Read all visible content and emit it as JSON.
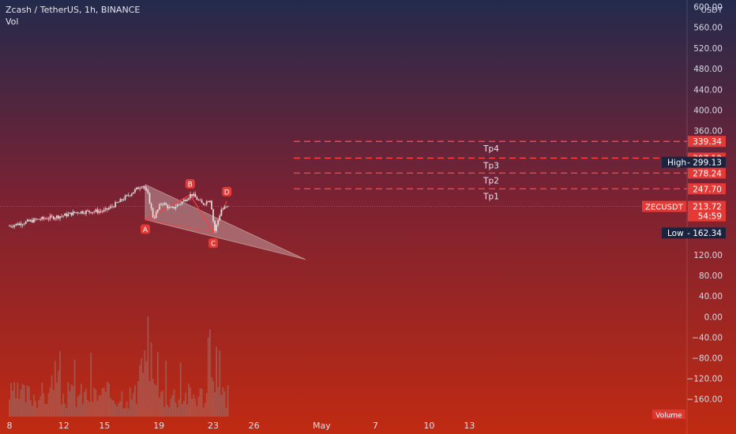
{
  "header": {
    "symbol_line": "Zcash / TetherUS, 1h, BINANCE",
    "sub_line": "Vol"
  },
  "colors": {
    "bg_top": "#232a4c",
    "bg_mid": "#7a2233",
    "bg_bottom": "#c02a12",
    "candle": "#e8e0e0",
    "level_line": "#ff4040",
    "level_badge": "#e53935",
    "dark_badge": "#1a2440",
    "pattern_fill": "#cfb8b8",
    "pattern_line": "#ff3b3b",
    "point_badge": "#e53935"
  },
  "chart_data": {
    "type": "candlestick",
    "symbol": "ZECUSDT",
    "timeframe": "1h",
    "exchange": "BINANCE",
    "y_unit": "USDT",
    "ylim": [
      -180,
      600
    ],
    "y_ticks": [
      "600.00",
      "560.00",
      "520.00",
      "480.00",
      "440.00",
      "400.00",
      "360.00",
      "120.00",
      "80.00",
      "40.00",
      "0.00",
      "−40.00",
      "−80.00",
      "−120.00",
      "−160.00"
    ],
    "x_ticks": [
      "8",
      "12",
      "15",
      "19",
      "23",
      "26",
      "May",
      "7",
      "10",
      "13"
    ],
    "price_path": [
      {
        "day": 8,
        "price": 176
      },
      {
        "day": 10,
        "price": 188
      },
      {
        "day": 12,
        "price": 196
      },
      {
        "day": 13,
        "price": 203
      },
      {
        "day": 15,
        "price": 205
      },
      {
        "day": 16,
        "price": 221
      },
      {
        "day": 17.2,
        "price": 244
      },
      {
        "day": 17.8,
        "price": 256
      },
      {
        "day": 18.2,
        "price": 236
      },
      {
        "day": 18.6,
        "price": 190
      },
      {
        "day": 19.2,
        "price": 222
      },
      {
        "day": 19.9,
        "price": 208
      },
      {
        "day": 20.7,
        "price": 222
      },
      {
        "day": 21.4,
        "price": 238
      },
      {
        "day": 22.2,
        "price": 218
      },
      {
        "day": 22.8,
        "price": 228
      },
      {
        "day": 23.1,
        "price": 165
      },
      {
        "day": 23.6,
        "price": 208
      },
      {
        "day": 24.2,
        "price": 214
      }
    ],
    "levels": [
      {
        "label": "339.34",
        "price": 339.34,
        "target": "Tp4",
        "style": "red"
      },
      {
        "label": "307.10",
        "price": 307.1,
        "target": "Tp3",
        "style": "red"
      },
      {
        "label": "278.24",
        "price": 278.24,
        "target": "Tp2",
        "style": "red"
      },
      {
        "label": "247.70",
        "price": 247.7,
        "target": "Tp1",
        "style": "red"
      }
    ],
    "high": {
      "label": "High",
      "value": "299.13",
      "price": 299.13
    },
    "low": {
      "label": "Low",
      "value": "162.34",
      "price": 162.34
    },
    "current": {
      "symbol": "ZECUSDT",
      "value": "213.72",
      "countdown": "54:59",
      "price": 213.72
    },
    "pattern": {
      "points": [
        {
          "label": "A",
          "day": 18.0,
          "price": 188
        },
        {
          "label": "B",
          "day": 21.3,
          "price": 236
        },
        {
          "label": "C",
          "day": 23.0,
          "price": 164
        },
        {
          "label": "D",
          "day": 24.0,
          "price": 224
        }
      ],
      "triangle": [
        {
          "day": 18.0,
          "price": 256
        },
        {
          "day": 18.0,
          "price": 188
        },
        {
          "day": 29.8,
          "price": 111
        }
      ]
    },
    "volume_label": "Volume"
  }
}
